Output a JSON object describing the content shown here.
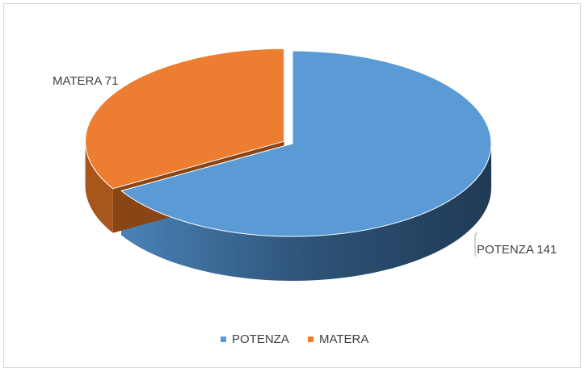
{
  "chart_data": {
    "type": "pie",
    "categories": [
      "POTENZA",
      "MATERA"
    ],
    "values": [
      141,
      71
    ],
    "colors": [
      "#5b9bd5",
      "#ed7d31"
    ],
    "legend": "bottom"
  }
}
